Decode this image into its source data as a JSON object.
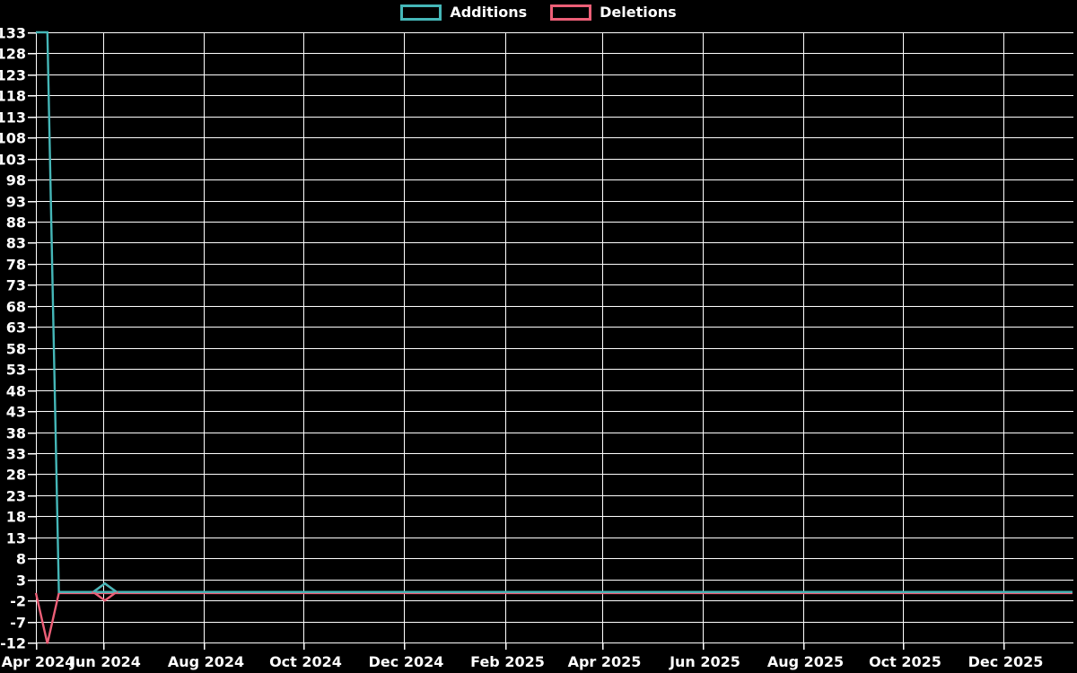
{
  "colors": {
    "background": "#000000",
    "grid": "#ffffff",
    "text": "#ffffff",
    "additions": "#45b7b8",
    "deletions": "#ec5f77"
  },
  "chart_data": {
    "type": "line",
    "title": "",
    "xlabel": "",
    "ylabel": "",
    "legend_position": "top-center",
    "grid": true,
    "x_axis": {
      "kind": "time",
      "origin_date": "2024-04-21",
      "end_date": "2026-01-12",
      "ticks": [
        {
          "label": "Apr 2024",
          "date": "2024-04-21"
        },
        {
          "label": "Jun 2024",
          "date": "2024-06-01"
        },
        {
          "label": "Aug 2024",
          "date": "2024-08-01"
        },
        {
          "label": "Oct 2024",
          "date": "2024-10-01"
        },
        {
          "label": "Dec 2024",
          "date": "2024-12-01"
        },
        {
          "label": "Feb 2025",
          "date": "2025-02-01"
        },
        {
          "label": "Apr 2025",
          "date": "2025-04-01"
        },
        {
          "label": "Jun 2025",
          "date": "2025-06-01"
        },
        {
          "label": "Aug 2025",
          "date": "2025-08-01"
        },
        {
          "label": "Oct 2025",
          "date": "2025-10-01"
        },
        {
          "label": "Dec 2025",
          "date": "2025-12-01"
        }
      ]
    },
    "y_axis": {
      "min": -12,
      "max": 133,
      "tick_step": 5,
      "tick_values": [
        -12,
        -7,
        -2,
        3,
        8,
        13,
        18,
        23,
        28,
        33,
        38,
        43,
        48,
        53,
        58,
        63,
        68,
        73,
        78,
        83,
        88,
        93,
        98,
        103,
        108,
        113,
        118,
        123,
        128,
        133
      ]
    },
    "series": [
      {
        "name": "Additions",
        "color": "#45b7b8",
        "points": [
          [
            "2024-04-21",
            133
          ],
          [
            "2024-04-28",
            133
          ],
          [
            "2024-05-05",
            0
          ],
          [
            "2026-01-12",
            0
          ]
        ],
        "note": "value stays 0 for every week after 2024-05-05 through end of axis"
      },
      {
        "name": "Deletions",
        "color": "#ec5f77",
        "points": [
          [
            "2024-04-21",
            0
          ],
          [
            "2024-04-28",
            -12
          ],
          [
            "2024-05-05",
            0
          ],
          [
            "2026-01-12",
            0
          ]
        ],
        "note": "value stays 0 for every week after 2024-05-05 through end of axis"
      }
    ],
    "markers": [
      {
        "shape": "diamond",
        "date": "2024-06-02",
        "value": 0,
        "series": [
          "Additions",
          "Deletions"
        ],
        "top_color": "#45b7b8",
        "bottom_color": "#ec5f77"
      }
    ]
  }
}
